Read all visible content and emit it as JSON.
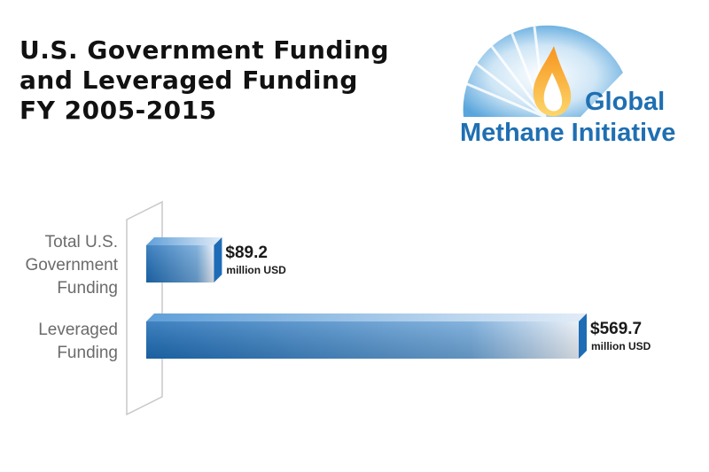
{
  "title_lines": [
    "U.S. Government Funding",
    "and Leveraged Funding",
    "FY 2005-2015"
  ],
  "logo": {
    "line1": "Global",
    "line2": "Methane Initiative",
    "colors": {
      "blue": "#1f6fb2",
      "flame_orange": "#f5a623",
      "flame_yellow": "#ffe27a"
    }
  },
  "chart_data": {
    "type": "bar",
    "orientation": "horizontal",
    "categories": [
      [
        "Total U.S.",
        "Government",
        "Funding"
      ],
      [
        "Leveraged",
        "Funding"
      ]
    ],
    "values": [
      89.2,
      569.7
    ],
    "value_labels": [
      "$89.2",
      "$569.7"
    ],
    "unit_label": "million USD",
    "xlim": [
      0,
      569.7
    ],
    "grid": false,
    "bar_color_dark": "#1e6cb5",
    "bar_color_light": "#e8eef6"
  }
}
